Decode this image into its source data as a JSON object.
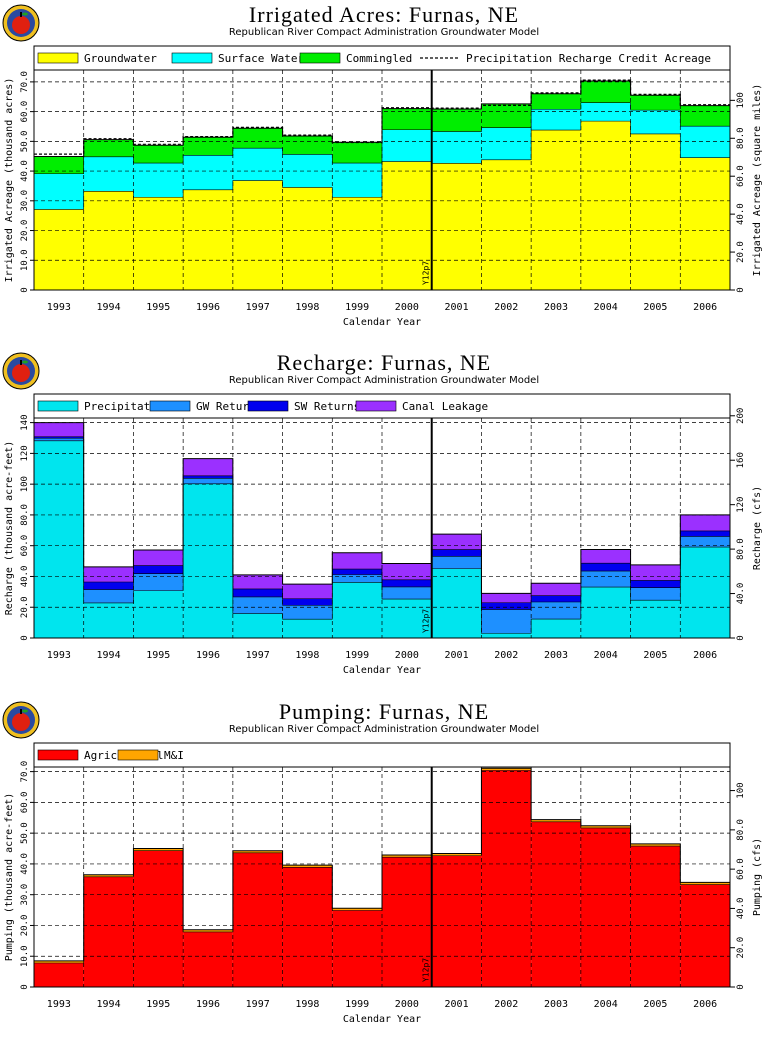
{
  "charts": [
    {
      "title": "Irrigated Acres: Furnas, NE",
      "subtitle": "Republican River Compact Administration Groundwater Model",
      "legend": [
        "Groundwater",
        "Surface Water",
        "Commingled",
        "Precipitation Recharge Credit Acreage"
      ],
      "ylabel_left": "Irrigated Acreage (thousand acres)",
      "ylabel_right": "Irrigated Acreage (square miles)",
      "xlabel": "Calendar Year",
      "marker_label": "Y12p7",
      "left_ticks": [
        "0",
        "10.0",
        "20.0",
        "30.0",
        "40.0",
        "50.0",
        "60.0",
        "70.0"
      ],
      "right_ticks": [
        "0",
        "20.0",
        "40.0",
        "60.0",
        "80.0",
        "100"
      ]
    },
    {
      "title": "Recharge: Furnas, NE",
      "subtitle": "Republican River Compact Administration Groundwater Model",
      "legend": [
        "Precipitation",
        "GW Returns",
        "SW Returns",
        "Canal Leakage"
      ],
      "ylabel_left": "Recharge (thousand acre-feet)",
      "ylabel_right": "Recharge (cfs)",
      "xlabel": "Calendar Year",
      "marker_label": "Y12p7",
      "left_ticks": [
        "0",
        "20.0",
        "40.0",
        "60.0",
        "80.0",
        "100",
        "120",
        "140"
      ],
      "right_ticks": [
        "0",
        "40.0",
        "80.0",
        "120",
        "160",
        "200"
      ]
    },
    {
      "title": "Pumping: Furnas, NE",
      "subtitle": "Republican River Compact Administration Groundwater Model",
      "legend": [
        "Agricultural",
        "M&I"
      ],
      "ylabel_left": "Pumping (thousand acre-feet)",
      "ylabel_right": "Pumping (cfs)",
      "xlabel": "Calendar Year",
      "marker_label": "Y12p7",
      "left_ticks": [
        "0",
        "10.0",
        "20.0",
        "30.0",
        "40.0",
        "50.0",
        "60.0",
        "70.0"
      ],
      "right_ticks": [
        "0",
        "20.0",
        "40.0",
        "60.0",
        "80.0",
        "100"
      ]
    }
  ],
  "chart_data": [
    {
      "type": "area",
      "title": "Irrigated Acres: Furnas, NE",
      "xlabel": "Calendar Year",
      "ylabel": "Irrigated Acreage (thousand acres)",
      "ylim": [
        0,
        74
      ],
      "categories": [
        "1993",
        "1994",
        "1995",
        "1996",
        "1997",
        "1998",
        "1999",
        "2000",
        "2001",
        "2002",
        "2003",
        "2004",
        "2005",
        "2006"
      ],
      "series": [
        {
          "name": "Groundwater",
          "color": "#ffff00",
          "values": [
            27.1,
            33.2,
            31.2,
            33.7,
            36.8,
            34.5,
            31.2,
            43.2,
            42.6,
            43.8,
            53.8,
            56.8,
            52.5,
            44.5
          ]
        },
        {
          "name": "Surface Water",
          "color": "#00ffff",
          "values": [
            12.0,
            11.6,
            11.5,
            11.6,
            10.9,
            11.1,
            11.5,
            10.7,
            10.7,
            10.8,
            7.0,
            6.2,
            8.0,
            10.6
          ]
        },
        {
          "name": "Commingled",
          "color": "#00ee00",
          "values": [
            5.8,
            5.8,
            6.0,
            6.1,
            6.7,
            6.2,
            7.0,
            7.1,
            7.6,
            8.0,
            5.2,
            7.3,
            5.0,
            6.9
          ]
        }
      ],
      "precipitation_recharge_credit_acreage": [
        45.7,
        50.9,
        49.0,
        51.6,
        54.7,
        52.1,
        49.6,
        61.3,
        61.2,
        62.1,
        66.3,
        70.6,
        65.8,
        62.3
      ],
      "marker_year": "2000.5"
    },
    {
      "type": "area",
      "title": "Recharge: Furnas, NE",
      "xlabel": "Calendar Year",
      "ylabel": "Recharge (thousand acre-feet)",
      "ylim": [
        0,
        143
      ],
      "categories": [
        "1993",
        "1994",
        "1995",
        "1996",
        "1997",
        "1998",
        "1999",
        "2000",
        "2001",
        "2002",
        "2003",
        "2004",
        "2005",
        "2006"
      ],
      "series": [
        {
          "name": "Precipitation",
          "color": "#00e5ee",
          "values": [
            128.2,
            22.8,
            30.8,
            100.2,
            15.9,
            12.2,
            36.1,
            25.3,
            45.1,
            3.0,
            12.3,
            33.1,
            24.6,
            59.1
          ]
        },
        {
          "name": "GW Returns",
          "color": "#1e90ff",
          "values": [
            1.7,
            8.7,
            11.0,
            3.6,
            10.8,
            9.0,
            5.1,
            7.9,
            8.0,
            15.5,
            11.1,
            10.4,
            8.1,
            6.9
          ]
        },
        {
          "name": "SW Returns",
          "color": "#0000ee",
          "values": [
            1.0,
            4.9,
            5.3,
            1.6,
            5.2,
            4.4,
            3.6,
            4.6,
            4.4,
            4.5,
            4.1,
            5.1,
            4.7,
            3.6
          ]
        },
        {
          "name": "Canal Leakage",
          "color": "#9b30ff",
          "values": [
            9.1,
            9.8,
            10.1,
            11.2,
            9.1,
            9.4,
            10.6,
            10.6,
            10.0,
            6.0,
            8.1,
            8.9,
            10.1,
            10.4
          ]
        }
      ],
      "marker_year": "2000.5"
    },
    {
      "type": "area",
      "title": "Pumping: Furnas, NE",
      "xlabel": "Calendar Year",
      "ylabel": "Pumping (thousand acre-feet)",
      "ylim": [
        0,
        71.5
      ],
      "categories": [
        "1993",
        "1994",
        "1995",
        "1996",
        "1997",
        "1998",
        "1999",
        "2000",
        "2001",
        "2002",
        "2003",
        "2004",
        "2005",
        "2006"
      ],
      "series": [
        {
          "name": "Agricultural",
          "color": "#ff0000",
          "values": [
            7.8,
            35.8,
            44.3,
            17.9,
            43.6,
            38.9,
            24.9,
            42.2,
            42.7,
            70.4,
            53.7,
            51.7,
            45.8,
            33.3
          ]
        },
        {
          "name": "M&I",
          "color": "#ffa500",
          "values": [
            0.7,
            0.7,
            0.7,
            0.7,
            0.7,
            0.7,
            0.7,
            0.7,
            0.7,
            0.7,
            0.7,
            0.7,
            0.7,
            0.7
          ]
        }
      ],
      "marker_year": "2000.5"
    }
  ]
}
